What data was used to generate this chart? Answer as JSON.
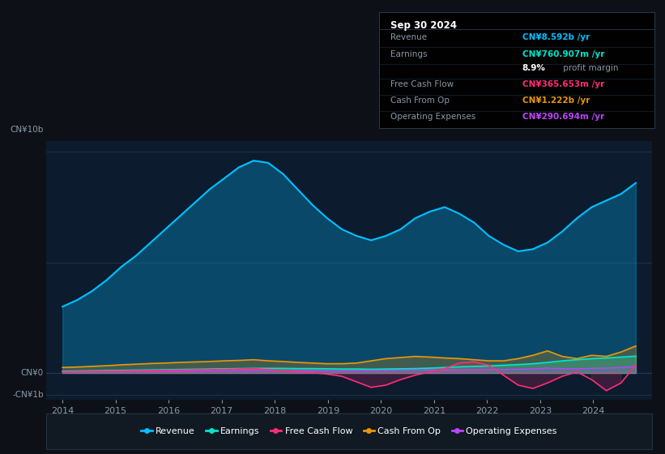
{
  "bg_color": "#0d1117",
  "plot_bg_color": "#0d1b2e",
  "colors": {
    "revenue": "#00bfff",
    "earnings": "#00e5cc",
    "free_cash_flow": "#ff2d78",
    "cash_from_op": "#e8960a",
    "operating_expenses": "#bb44ff"
  },
  "legend": [
    {
      "label": "Revenue",
      "color": "#00bfff"
    },
    {
      "label": "Earnings",
      "color": "#00e5cc"
    },
    {
      "label": "Free Cash Flow",
      "color": "#ff2d78"
    },
    {
      "label": "Cash From Op",
      "color": "#e8960a"
    },
    {
      "label": "Operating Expenses",
      "color": "#bb44ff"
    }
  ],
  "info_box": {
    "date": "Sep 30 2024",
    "rows": [
      {
        "label": "Revenue",
        "value": "CN¥8.592b /yr",
        "vcolor": "#00bfff",
        "pct": null
      },
      {
        "label": "Earnings",
        "value": "CN¥760.907m /yr",
        "vcolor": "#00e5cc",
        "pct": null
      },
      {
        "label": "",
        "value": "8.9% profit margin",
        "vcolor": "mixed",
        "pct": "8.9%"
      },
      {
        "label": "Free Cash Flow",
        "value": "CN¥365.653m /yr",
        "vcolor": "#ff2d78",
        "pct": null
      },
      {
        "label": "Cash From Op",
        "value": "CN¥1.222b /yr",
        "vcolor": "#e8960a",
        "pct": null
      },
      {
        "label": "Operating Expenses",
        "value": "CN¥290.694m /yr",
        "vcolor": "#bb44ff",
        "pct": null
      }
    ]
  },
  "ylabel_top": "CN¥10b",
  "ylabel_zero": "CN¥0",
  "ylabel_neg": "-CN¥1b",
  "xticklabels": [
    "2014",
    "2015",
    "2016",
    "2017",
    "2018",
    "2019",
    "2020",
    "2021",
    "2022",
    "2023",
    "2024"
  ],
  "xticks": [
    2014,
    2015,
    2016,
    2017,
    2018,
    2019,
    2020,
    2021,
    2022,
    2023,
    2024
  ],
  "ylim": [
    -1.2,
    10.5
  ],
  "xlim_start": 2013.7,
  "xlim_end": 2025.1,
  "revenue": [
    3.0,
    3.3,
    3.7,
    4.2,
    4.8,
    5.3,
    5.9,
    6.5,
    7.1,
    7.7,
    8.3,
    8.8,
    9.3,
    9.6,
    9.5,
    9.0,
    8.3,
    7.6,
    7.0,
    6.5,
    6.2,
    6.0,
    6.2,
    6.5,
    7.0,
    7.3,
    7.5,
    7.2,
    6.8,
    6.2,
    5.8,
    5.5,
    5.6,
    5.9,
    6.4,
    7.0,
    7.5,
    7.8,
    8.1,
    8.592
  ],
  "earnings": [
    0.08,
    0.09,
    0.1,
    0.11,
    0.12,
    0.13,
    0.14,
    0.15,
    0.16,
    0.17,
    0.18,
    0.19,
    0.2,
    0.21,
    0.21,
    0.21,
    0.2,
    0.2,
    0.19,
    0.18,
    0.18,
    0.17,
    0.18,
    0.19,
    0.2,
    0.22,
    0.25,
    0.28,
    0.3,
    0.32,
    0.35,
    0.38,
    0.42,
    0.48,
    0.55,
    0.6,
    0.65,
    0.68,
    0.72,
    0.761
  ],
  "free_cash_flow": [
    0.05,
    0.06,
    0.07,
    0.08,
    0.09,
    0.1,
    0.11,
    0.12,
    0.13,
    0.14,
    0.15,
    0.16,
    0.18,
    0.2,
    0.15,
    0.1,
    0.05,
    0.02,
    -0.05,
    -0.15,
    -0.4,
    -0.65,
    -0.55,
    -0.3,
    -0.1,
    0.05,
    0.2,
    0.45,
    0.5,
    0.35,
    -0.1,
    -0.55,
    -0.7,
    -0.45,
    -0.15,
    0.05,
    -0.3,
    -0.8,
    -0.45,
    0.366
  ],
  "cash_from_op": [
    0.25,
    0.27,
    0.3,
    0.33,
    0.37,
    0.4,
    0.43,
    0.45,
    0.48,
    0.5,
    0.52,
    0.55,
    0.57,
    0.6,
    0.55,
    0.52,
    0.48,
    0.45,
    0.42,
    0.42,
    0.45,
    0.55,
    0.65,
    0.7,
    0.75,
    0.72,
    0.68,
    0.65,
    0.6,
    0.55,
    0.55,
    0.65,
    0.8,
    1.0,
    0.75,
    0.65,
    0.8,
    0.75,
    0.95,
    1.222
  ],
  "operating_expenses": [
    0.05,
    0.055,
    0.06,
    0.065,
    0.07,
    0.075,
    0.08,
    0.085,
    0.09,
    0.095,
    0.1,
    0.105,
    0.11,
    0.115,
    0.11,
    0.108,
    0.105,
    0.1,
    0.098,
    0.095,
    0.1,
    0.11,
    0.12,
    0.13,
    0.14,
    0.14,
    0.13,
    0.13,
    0.14,
    0.15,
    0.16,
    0.17,
    0.19,
    0.22,
    0.2,
    0.19,
    0.21,
    0.22,
    0.25,
    0.291
  ]
}
